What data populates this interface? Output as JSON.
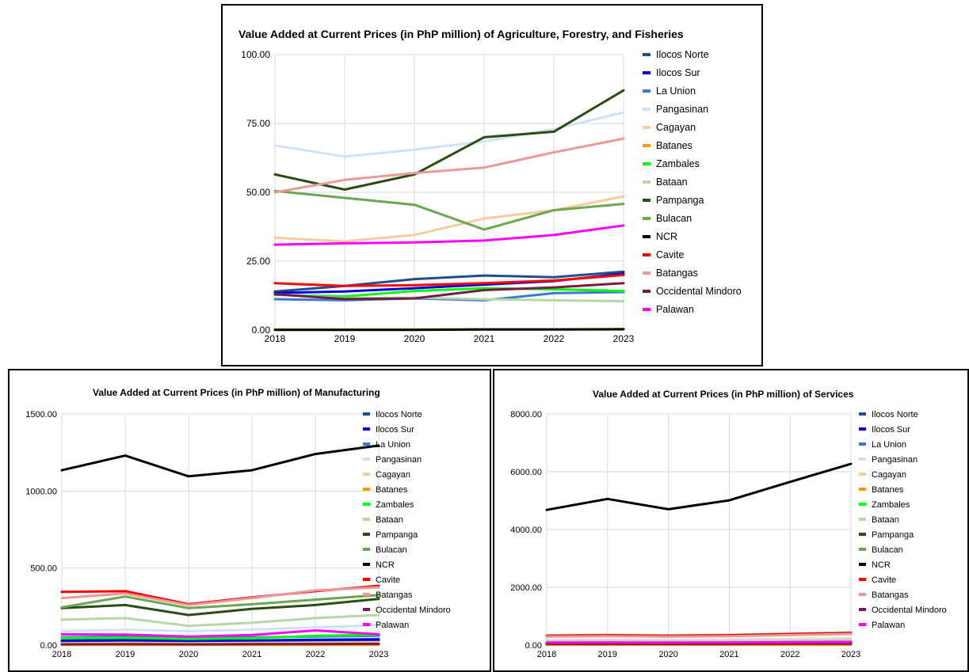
{
  "colors": {
    "Ilocos Norte": "#1f4e8c",
    "Ilocos Sur": "#0000e0",
    "La Union": "#3c78d8",
    "Pangasinan": "#cfe2f3",
    "Cagayan": "#f9cb9c",
    "Batanes": "#ff9900",
    "Zambales": "#00ff00",
    "Bataan": "#b6d7a8",
    "Pampanga": "#274e13",
    "Bulacan": "#6aa84f",
    "NCR": "#000000",
    "Cavite": "#ff0000",
    "Batangas": "#ea9999",
    "Occidental Mindoro": "#741b47",
    "Palawan": "#ff00ff"
  },
  "chart_data": [
    {
      "type": "line",
      "title": "Value Added at Current Prices (in PhP million) of Agriculture, Forestry, and Fisheries",
      "xlabel": "",
      "ylabel": "",
      "x": [
        "2018",
        "2019",
        "2020",
        "2021",
        "2022",
        "2023"
      ],
      "ylim": [
        0,
        100
      ],
      "yticks": [
        "0.00",
        "25.00",
        "50.00",
        "75.00",
        "100.00"
      ],
      "grid": true,
      "legend": "right",
      "series": [
        {
          "name": "Ilocos Norte",
          "values": [
            14,
            16,
            18.5,
            19.8,
            19.2,
            21.2
          ]
        },
        {
          "name": "Ilocos Sur",
          "values": [
            13.5,
            14,
            15.2,
            16.5,
            17.8,
            20.5
          ]
        },
        {
          "name": "La Union",
          "values": [
            11.2,
            10.8,
            11.5,
            10.8,
            13.4,
            13.8
          ]
        },
        {
          "name": "Pangasinan",
          "values": [
            67,
            63,
            65.5,
            68.5,
            73,
            79
          ]
        },
        {
          "name": "Cagayan",
          "values": [
            33.5,
            32.2,
            34.5,
            40.5,
            43.5,
            48.5
          ]
        },
        {
          "name": "Batanes",
          "values": [
            0.2,
            0.2,
            0.2,
            0.3,
            0.3,
            0.4
          ]
        },
        {
          "name": "Zambales",
          "values": [
            12.8,
            12.2,
            14.2,
            15.2,
            14.8,
            14.2
          ]
        },
        {
          "name": "Bataan",
          "values": [
            13,
            11.5,
            11.8,
            11.2,
            10.8,
            10.5
          ]
        },
        {
          "name": "Pampanga",
          "values": [
            56.5,
            51,
            56.5,
            70,
            72,
            87
          ]
        },
        {
          "name": "Bulacan",
          "values": [
            50.5,
            48,
            45.5,
            36.5,
            43.5,
            45.8
          ]
        },
        {
          "name": "NCR",
          "values": [
            0.1,
            0.1,
            0.1,
            0.2,
            0.2,
            0.3
          ]
        },
        {
          "name": "Cavite",
          "values": [
            17,
            16,
            16.3,
            17,
            18,
            20
          ]
        },
        {
          "name": "Batangas",
          "values": [
            50,
            54.5,
            57,
            59,
            64.5,
            69.5
          ]
        },
        {
          "name": "Occidental Mindoro",
          "values": [
            13,
            11.3,
            11.5,
            14.5,
            15.5,
            17
          ]
        },
        {
          "name": "Palawan",
          "values": [
            31,
            31.5,
            31.8,
            32.5,
            34.5,
            38
          ]
        }
      ]
    },
    {
      "type": "line",
      "title": "Value Added at Current Prices (in PhP million) of Manufacturing",
      "xlabel": "",
      "ylabel": "",
      "x": [
        "2018",
        "2019",
        "2020",
        "2021",
        "2022",
        "2023"
      ],
      "ylim": [
        0,
        1500
      ],
      "yticks": [
        "0.00",
        "500.00",
        "1000.00",
        "1500.00"
      ],
      "grid": true,
      "legend": "right",
      "series": [
        {
          "name": "Ilocos Norte",
          "values": [
            20,
            22,
            18,
            22,
            25,
            28
          ]
        },
        {
          "name": "Ilocos Sur",
          "values": [
            30,
            32,
            28,
            30,
            35,
            38
          ]
        },
        {
          "name": "La Union",
          "values": [
            50,
            55,
            45,
            50,
            55,
            60
          ]
        },
        {
          "name": "Pangasinan",
          "values": [
            90,
            100,
            90,
            100,
            115,
            130
          ]
        },
        {
          "name": "Cagayan",
          "values": [
            12,
            14,
            12,
            14,
            16,
            18
          ]
        },
        {
          "name": "Batanes",
          "values": [
            1,
            1,
            1,
            1,
            1,
            1
          ]
        },
        {
          "name": "Zambales",
          "values": [
            45,
            48,
            40,
            45,
            60,
            68
          ]
        },
        {
          "name": "Bataan",
          "values": [
            165,
            175,
            125,
            145,
            175,
            195
          ]
        },
        {
          "name": "Pampanga",
          "values": [
            240,
            260,
            195,
            235,
            260,
            300
          ]
        },
        {
          "name": "Bulacan",
          "values": [
            245,
            315,
            240,
            265,
            295,
            325
          ]
        },
        {
          "name": "NCR",
          "values": [
            1135,
            1230,
            1095,
            1135,
            1240,
            1295
          ]
        },
        {
          "name": "Cavite",
          "values": [
            345,
            350,
            265,
            310,
            350,
            385
          ]
        },
        {
          "name": "Batangas",
          "values": [
            305,
            335,
            260,
            305,
            355,
            375
          ]
        },
        {
          "name": "Occidental Mindoro",
          "values": [
            5,
            6,
            5,
            6,
            7,
            8
          ]
        },
        {
          "name": "Palawan",
          "values": [
            70,
            68,
            55,
            65,
            95,
            70
          ]
        }
      ]
    },
    {
      "type": "line",
      "title": "Value Added at Current Prices (in PhP million) of Services",
      "xlabel": "",
      "ylabel": "",
      "x": [
        "2018",
        "2019",
        "2020",
        "2021",
        "2022",
        "2023"
      ],
      "ylim": [
        0,
        8000
      ],
      "yticks": [
        "0.00",
        "2000.00",
        "4000.00",
        "6000.00",
        "8000.00"
      ],
      "grid": true,
      "legend": "right",
      "series": [
        {
          "name": "Ilocos Norte",
          "values": [
            75,
            80,
            75,
            80,
            90,
            100
          ]
        },
        {
          "name": "Ilocos Sur",
          "values": [
            60,
            65,
            60,
            65,
            70,
            80
          ]
        },
        {
          "name": "La Union",
          "values": [
            110,
            115,
            105,
            115,
            125,
            140
          ]
        },
        {
          "name": "Pangasinan",
          "values": [
            180,
            190,
            180,
            190,
            210,
            235
          ]
        },
        {
          "name": "Cagayan",
          "values": [
            140,
            150,
            140,
            150,
            165,
            180
          ]
        },
        {
          "name": "Batanes",
          "values": [
            5,
            5,
            5,
            5,
            6,
            6
          ]
        },
        {
          "name": "Zambales",
          "values": [
            95,
            100,
            95,
            100,
            110,
            125
          ]
        },
        {
          "name": "Bataan",
          "values": [
            120,
            125,
            115,
            125,
            140,
            155
          ]
        },
        {
          "name": "Pampanga",
          "values": [
            300,
            320,
            300,
            320,
            360,
            400
          ]
        },
        {
          "name": "Bulacan",
          "values": [
            330,
            350,
            330,
            350,
            390,
            430
          ]
        },
        {
          "name": "NCR",
          "values": [
            4680,
            5060,
            4700,
            5010,
            5650,
            6270
          ]
        },
        {
          "name": "Cavite",
          "values": [
            320,
            340,
            320,
            340,
            380,
            420
          ]
        },
        {
          "name": "Batangas",
          "values": [
            290,
            310,
            290,
            310,
            345,
            385
          ]
        },
        {
          "name": "Occidental Mindoro",
          "values": [
            40,
            42,
            40,
            42,
            46,
            50
          ]
        },
        {
          "name": "Palawan",
          "values": [
            85,
            90,
            85,
            90,
            100,
            110
          ]
        }
      ]
    }
  ]
}
